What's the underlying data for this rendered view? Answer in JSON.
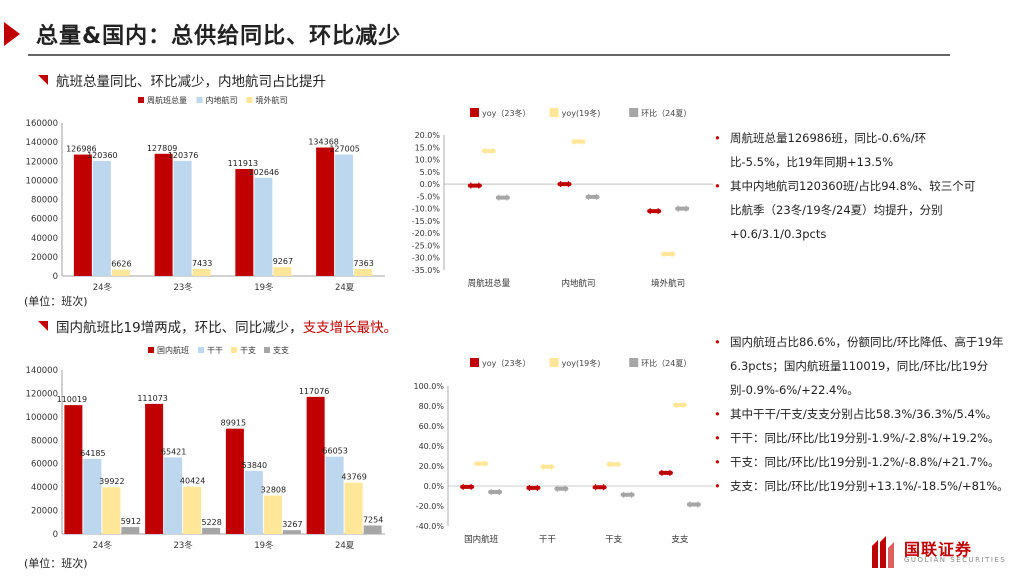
{
  "page": {
    "title": "总量&国内：总供给同比、环比减少",
    "section1": "航班总量同比、环比减少，内地航司占比提升",
    "section2_a": "国内航班比19增两成，环比、同比减少，",
    "section2_b": "支支增长最快。",
    "unit1": "(单位：班次)",
    "unit2": "(单位：班次)"
  },
  "bullets_top": [
    "周航班总量126986班，同比-0.6%/环比-5.5%，比19年同期+13.5%",
    "其中内地航司120360班/占比94.8%、较三个可比航季（23冬/19冬/24夏）均提升，分别+0.6/3.1/0.3pcts"
  ],
  "bullets_bottom": [
    "国内航班占比86.6%，份额同比/环比降低、高于19年6.3pcts；国内航班量110019，同比/环比/比19分别-0.9%-6%/+22.4%。",
    "其中干干/干支/支支分别占比58.3%/36.3%/5.4%。",
    "干干：同比/环比/比19分别-1.9%/-2.8%/+19.2%。",
    "干支：同比/环比/比19分别-1.2%/-8.8%/+21.7%。",
    "支支：同比/环比/比19分别+13.1%/-18.5%/+81%。"
  ],
  "logo": {
    "name": "国联证券",
    "sub": "GUOLIAN SECURITIES"
  },
  "chart_data": [
    {
      "type": "bar",
      "categories": [
        "24冬",
        "23冬",
        "19冬",
        "24夏"
      ],
      "series": [
        {
          "name": "周航班总量",
          "values": [
            126986,
            127809,
            111913,
            134368
          ],
          "color": "#c00000"
        },
        {
          "name": "内地航司",
          "values": [
            120360,
            120376,
            102646,
            127005
          ],
          "color": "#bdd7ee"
        },
        {
          "name": "境外航司",
          "values": [
            6626,
            7433,
            9267,
            7363
          ],
          "color": "#ffe699"
        }
      ],
      "ylim": [
        0,
        160000
      ],
      "yticks": [
        "0",
        "20000",
        "40000",
        "60000",
        "80000",
        "100000",
        "120000",
        "140000",
        "160000"
      ],
      "legend": "top"
    },
    {
      "type": "scatter",
      "categories": [
        "周航班总量",
        "内地航司",
        "境外航司"
      ],
      "series": [
        {
          "name": "yoy（23冬）",
          "values": [
            -0.6,
            0.0,
            -11.0
          ],
          "color": "#c00000"
        },
        {
          "name": "yoy(19冬)",
          "values": [
            13.5,
            17.3,
            -28.5
          ],
          "color": "#ffe699"
        },
        {
          "name": "环比（24夏）",
          "values": [
            -5.5,
            -5.2,
            -10.0
          ],
          "color": "#a6a6a6"
        }
      ],
      "ylim": [
        -35,
        20
      ],
      "yticks": [
        "-35.0%",
        "-30.0%",
        "-25.0%",
        "-20.0%",
        "-15.0%",
        "-10.0%",
        "-5.0%",
        "0.0%",
        "5.0%",
        "10.0%",
        "15.0%",
        "20.0%"
      ],
      "legend": "top"
    },
    {
      "type": "bar",
      "categories": [
        "24冬",
        "23冬",
        "19冬",
        "24夏"
      ],
      "series": [
        {
          "name": "国内航班",
          "values": [
            110019,
            111073,
            89915,
            117076
          ],
          "color": "#c00000"
        },
        {
          "name": "干干",
          "values": [
            64185,
            65421,
            53840,
            66053
          ],
          "color": "#bdd7ee"
        },
        {
          "name": "干支",
          "values": [
            39922,
            40424,
            32808,
            43769
          ],
          "color": "#ffe699"
        },
        {
          "name": "支支",
          "values": [
            5912,
            5228,
            3267,
            7254
          ],
          "color": "#a6a6a6"
        }
      ],
      "ylim": [
        0,
        140000
      ],
      "yticks": [
        "0",
        "20000",
        "40000",
        "60000",
        "80000",
        "100000",
        "120000",
        "140000"
      ],
      "legend": "top"
    },
    {
      "type": "scatter",
      "categories": [
        "国内航班",
        "干干",
        "干支",
        "支支"
      ],
      "series": [
        {
          "name": "yoy（23冬）",
          "values": [
            -0.9,
            -1.9,
            -1.2,
            13.1
          ],
          "color": "#c00000"
        },
        {
          "name": "yoy(19冬)",
          "values": [
            22.4,
            19.2,
            21.7,
            81.0
          ],
          "color": "#ffe699"
        },
        {
          "name": "环比（24夏）",
          "values": [
            -6.0,
            -2.8,
            -8.8,
            -18.5
          ],
          "color": "#a6a6a6"
        }
      ],
      "ylim": [
        -40,
        100
      ],
      "yticks": [
        "-40.0%",
        "-20.0%",
        "0.0%",
        "20.0%",
        "40.0%",
        "60.0%",
        "80.0%",
        "100.0%"
      ],
      "legend": "top"
    }
  ]
}
